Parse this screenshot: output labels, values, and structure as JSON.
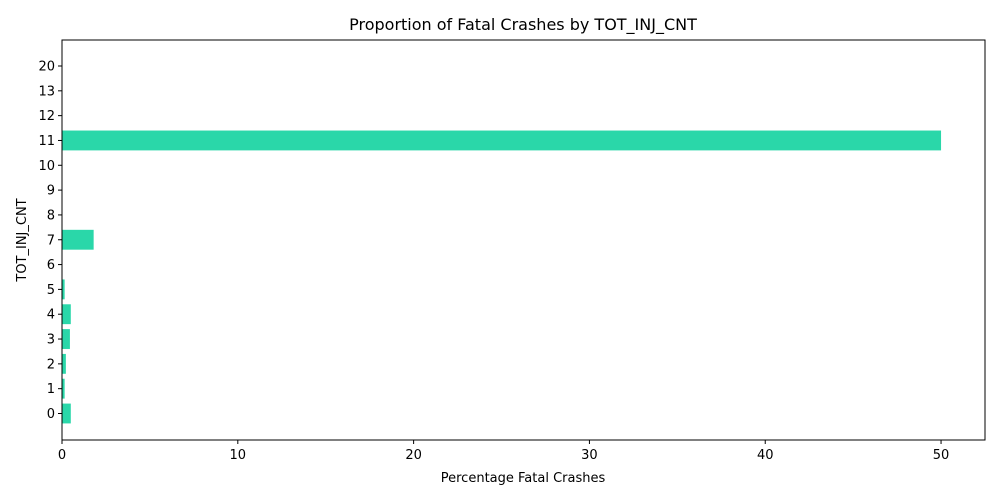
{
  "chart_data": {
    "type": "bar",
    "orientation": "horizontal",
    "title": "Proportion of Fatal Crashes by TOT_INJ_CNT",
    "xlabel": "Percentage Fatal Crashes",
    "ylabel": "TOT_INJ_CNT",
    "categories": [
      "0",
      "1",
      "2",
      "3",
      "4",
      "5",
      "6",
      "7",
      "8",
      "9",
      "10",
      "11",
      "12",
      "13",
      "20"
    ],
    "values": [
      0.5,
      0.15,
      0.22,
      0.45,
      0.5,
      0.15,
      0,
      1.8,
      0,
      0,
      0,
      50,
      0,
      0,
      0
    ],
    "xlim": [
      0,
      52.5
    ],
    "xticks": [
      0,
      10,
      20,
      30,
      40,
      50
    ],
    "grid": false,
    "bar_color": "#2ad7a9"
  }
}
